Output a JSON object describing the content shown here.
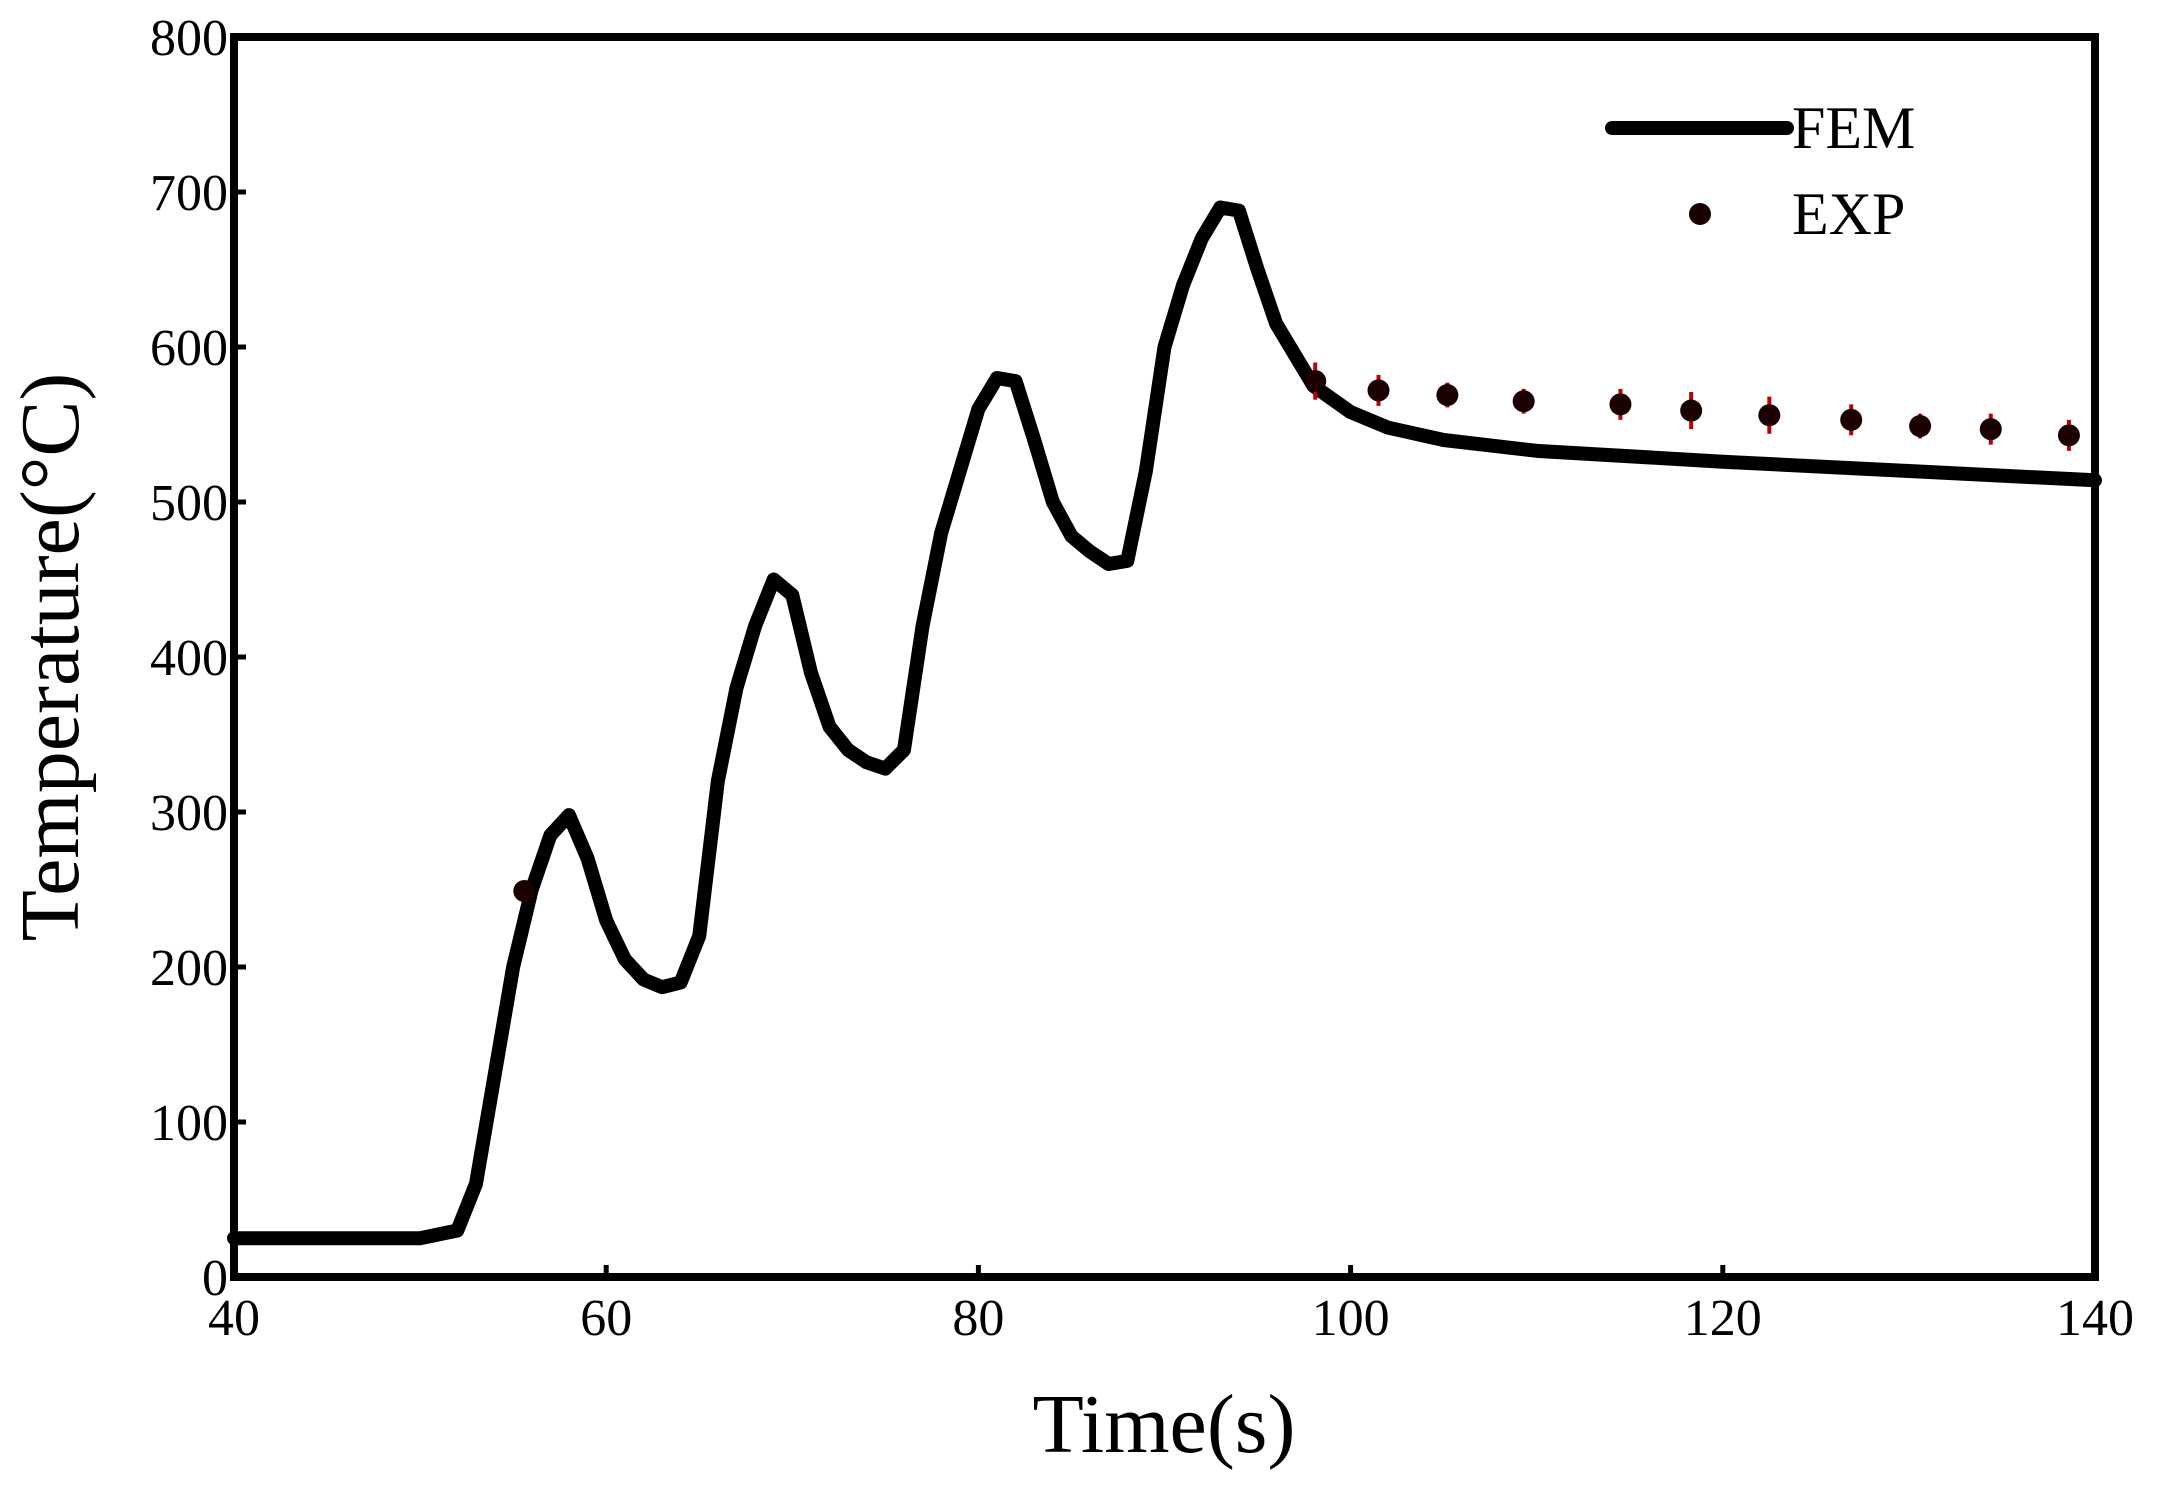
{
  "chart_data": {
    "type": "line",
    "x_label": "Time(s)",
    "y_label": "Temperature(°C)",
    "xlim": [
      40,
      140
    ],
    "xticks": [
      40,
      60,
      80,
      100,
      120,
      140
    ],
    "ylim": [
      0,
      800
    ],
    "yticks": [
      0,
      100,
      200,
      300,
      400,
      500,
      600,
      700,
      800
    ],
    "legend": "upper right",
    "series": [
      {
        "name": "FEM",
        "color": "#000000",
        "style": "line",
        "x": [
          40,
          50,
          52,
          53,
          54,
          55,
          56,
          57,
          58,
          59,
          60,
          61,
          62,
          63,
          64,
          65,
          66,
          67,
          68,
          69,
          70,
          71,
          72,
          73,
          74,
          75,
          76,
          77,
          78,
          79,
          80,
          81,
          82,
          83,
          84,
          85,
          86,
          87,
          88,
          89,
          90,
          91,
          92,
          93,
          94,
          95,
          96,
          97,
          98,
          100,
          102,
          105,
          110,
          120,
          130,
          140
        ],
        "values": [
          25,
          25,
          30,
          60,
          130,
          200,
          250,
          285,
          298,
          270,
          230,
          205,
          192,
          187,
          190,
          220,
          320,
          380,
          420,
          450,
          440,
          390,
          355,
          340,
          332,
          328,
          340,
          420,
          480,
          520,
          560,
          580,
          578,
          540,
          500,
          478,
          468,
          460,
          462,
          520,
          600,
          640,
          670,
          690,
          688,
          650,
          615,
          595,
          575,
          558,
          548,
          540,
          533,
          526,
          520,
          514
        ]
      },
      {
        "name": "EXP",
        "color": "#1a0000",
        "error_color": "#c00000",
        "style": "points",
        "x": [
          55.6,
          98.1,
          101.5,
          105.2,
          109.3,
          114.5,
          118.3,
          122.5,
          126.9,
          130.6,
          134.4,
          138.6
        ],
        "values": [
          249,
          578,
          572,
          569,
          565,
          563,
          559,
          556,
          553,
          549,
          547,
          543
        ],
        "errors": [
          0,
          12,
          10,
          8,
          8,
          10,
          12,
          12,
          10,
          8,
          10,
          10
        ]
      }
    ]
  }
}
